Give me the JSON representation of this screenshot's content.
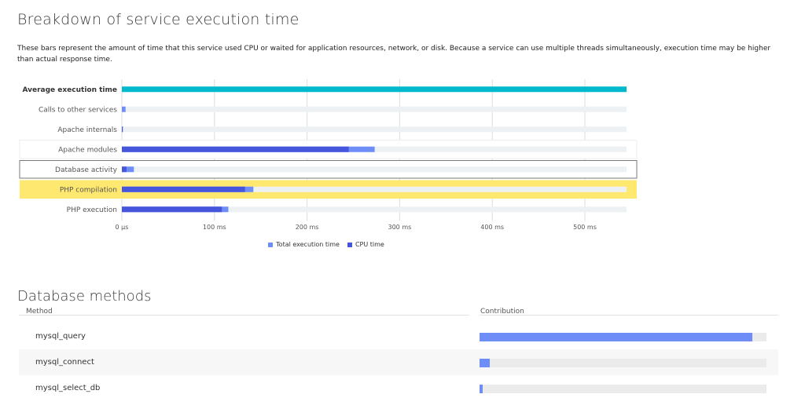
{
  "breakdown": {
    "title": "Breakdown of service execution time",
    "description": "These bars represent the amount of time that this service used CPU or waited for application resources, network, or disk. Because a service can use multiple threads simultaneously, execution time may be higher than actual response time."
  },
  "chart_data": {
    "type": "bar",
    "orientation": "horizontal",
    "title": "",
    "xlabel": "",
    "ylabel": "",
    "xlim": [
      0,
      550
    ],
    "x_unit": "ms",
    "x_ticks": [
      "0 µs",
      "100 ms",
      "200 ms",
      "300 ms",
      "400 ms",
      "500 ms"
    ],
    "x_tick_values": [
      0,
      100,
      200,
      300,
      400,
      500
    ],
    "grid": true,
    "legend_position": "bottom-center",
    "categories": [
      "Average execution time",
      "Calls to other services",
      "Apache internals",
      "Apache modules",
      "Database activity",
      "PHP compilation",
      "PHP execution"
    ],
    "series": [
      {
        "name": "Total execution time",
        "values": [
          545,
          4,
          1,
          273,
          13,
          142,
          115
        ]
      },
      {
        "name": "CPU time",
        "values": [
          null,
          0,
          1,
          245,
          5,
          133,
          108
        ]
      }
    ],
    "colors": {
      "total": "#6f8df7",
      "cpu": "#4656dc",
      "average": "#00b9cc",
      "track": "#eef1f3",
      "highlight": "#ffe870"
    },
    "highlighted_category": "PHP compilation",
    "selected_category": "Database activity"
  },
  "methods": {
    "title": "Database methods",
    "col_method": "Method",
    "col_contribution": "Contribution",
    "rows": [
      {
        "name": "mysql_query",
        "contribution": 0.95
      },
      {
        "name": "mysql_connect",
        "contribution": 0.035
      },
      {
        "name": "mysql_select_db",
        "contribution": 0.012
      }
    ]
  }
}
